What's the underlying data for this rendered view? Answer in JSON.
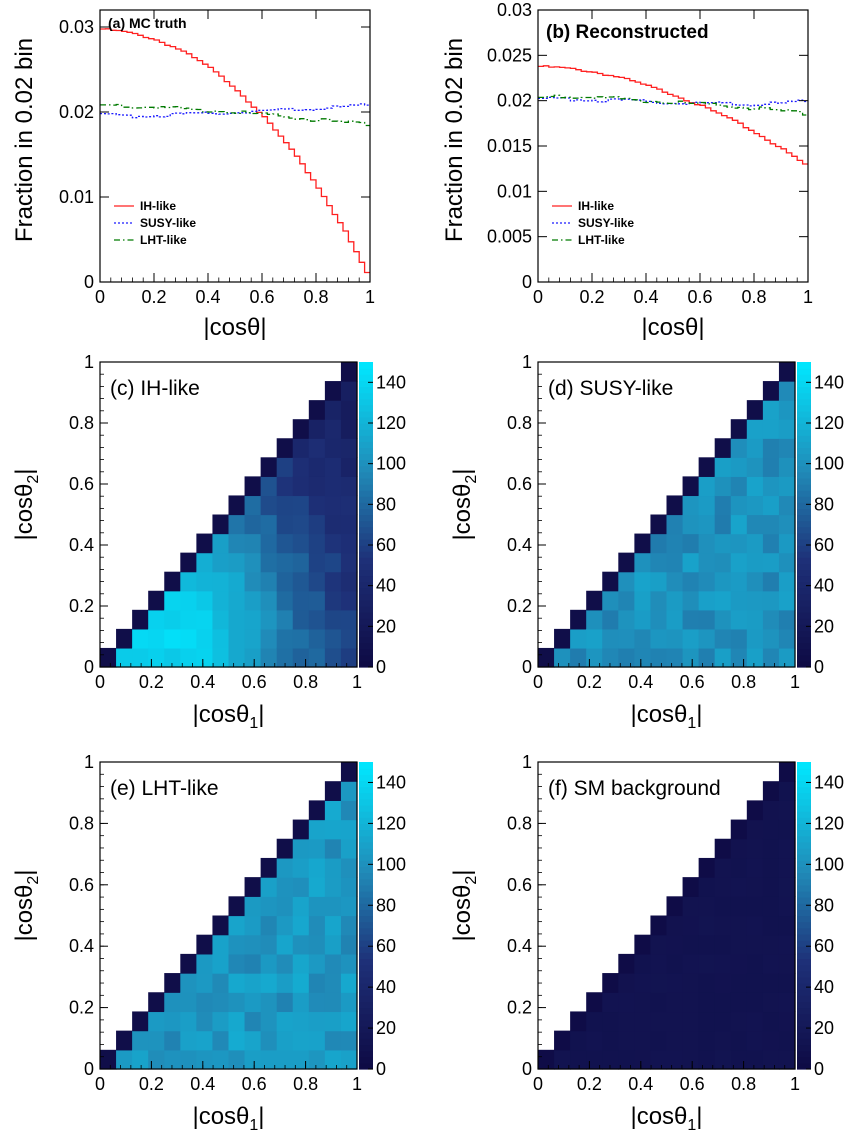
{
  "chart_data": [
    {
      "id": "a",
      "type": "line",
      "title": "(a) MC truth",
      "xlabel": "|cosθ|",
      "ylabel": "Fraction in 0.02 bin",
      "xlim": [
        0,
        1
      ],
      "ylim": [
        0,
        0.032
      ],
      "xticks": [
        "0",
        "0.2",
        "0.4",
        "0.6",
        "0.8",
        "1"
      ],
      "yticks": [
        "0",
        "0.01",
        "0.02",
        "0.03"
      ],
      "legend_position": "bottom-left",
      "series": [
        {
          "name": "IH-like",
          "style": "solid",
          "color": "#ff2020",
          "x": [
            0.0,
            0.1,
            0.2,
            0.3,
            0.4,
            0.5,
            0.6,
            0.7,
            0.8,
            0.9,
            1.0
          ],
          "y": [
            0.0298,
            0.0294,
            0.0286,
            0.0273,
            0.0254,
            0.0229,
            0.0197,
            0.016,
            0.0116,
            0.0065,
            0.0005
          ]
        },
        {
          "name": "SUSY-like",
          "style": "dotted",
          "color": "#1a1aff",
          "x": [
            0.0,
            0.1,
            0.2,
            0.3,
            0.4,
            0.5,
            0.6,
            0.7,
            0.8,
            0.9,
            1.0
          ],
          "y": [
            0.0197,
            0.0195,
            0.0196,
            0.0197,
            0.0198,
            0.02,
            0.0201,
            0.0203,
            0.0204,
            0.0206,
            0.0208
          ]
        },
        {
          "name": "LHT-like",
          "style": "dashdot",
          "color": "#007a00",
          "x": [
            0.0,
            0.1,
            0.2,
            0.3,
            0.4,
            0.5,
            0.6,
            0.7,
            0.8,
            0.9,
            1.0
          ],
          "y": [
            0.0208,
            0.0207,
            0.0206,
            0.0204,
            0.0202,
            0.02,
            0.0197,
            0.0194,
            0.0191,
            0.0188,
            0.0185
          ]
        }
      ]
    },
    {
      "id": "b",
      "type": "line",
      "title": "(b) Reconstructed",
      "xlabel": "|cosθ|",
      "ylabel": "Fraction in 0.02 bin",
      "xlim": [
        0,
        1
      ],
      "ylim": [
        0,
        0.03
      ],
      "xticks": [
        "0",
        "0.2",
        "0.4",
        "0.6",
        "0.8",
        "1"
      ],
      "yticks": [
        "0",
        "0.005",
        "0.01",
        "0.015",
        "0.02",
        "0.025",
        "0.03"
      ],
      "legend_position": "bottom-left",
      "series": [
        {
          "name": "IH-like",
          "style": "solid",
          "color": "#ff2020",
          "x": [
            0.0,
            0.1,
            0.2,
            0.3,
            0.4,
            0.5,
            0.6,
            0.7,
            0.8,
            0.9,
            1.0
          ],
          "y": [
            0.0238,
            0.0236,
            0.0232,
            0.0226,
            0.0217,
            0.0207,
            0.0195,
            0.0182,
            0.0166,
            0.0148,
            0.0128
          ]
        },
        {
          "name": "SUSY-like",
          "style": "dotted",
          "color": "#1a1aff",
          "x": [
            0.0,
            0.1,
            0.2,
            0.3,
            0.4,
            0.5,
            0.6,
            0.7,
            0.8,
            0.9,
            1.0
          ],
          "y": [
            0.0201,
            0.0202,
            0.0201,
            0.02,
            0.0199,
            0.0198,
            0.0197,
            0.0197,
            0.0196,
            0.0197,
            0.0199
          ]
        },
        {
          "name": "LHT-like",
          "style": "dashdot",
          "color": "#007a00",
          "x": [
            0.0,
            0.1,
            0.2,
            0.3,
            0.4,
            0.5,
            0.6,
            0.7,
            0.8,
            0.9,
            1.0
          ],
          "y": [
            0.0203,
            0.0205,
            0.0204,
            0.0202,
            0.02,
            0.0198,
            0.0196,
            0.0194,
            0.0192,
            0.0189,
            0.0185
          ]
        }
      ]
    },
    {
      "id": "c",
      "type": "heatmap",
      "title": "(c) IH-like",
      "xlabel": "|cosθ1|",
      "ylabel": "|cosθ2|",
      "xlim": [
        0,
        1
      ],
      "ylim": [
        0,
        1
      ],
      "zlim": [
        0,
        150
      ],
      "xticks": [
        "0",
        "0.2",
        "0.4",
        "0.6",
        "0.8",
        "1"
      ],
      "yticks": [
        "0",
        "0.2",
        "0.4",
        "0.6",
        "0.8",
        "1"
      ],
      "zticks": [
        "0",
        "20",
        "40",
        "60",
        "80",
        "100",
        "120",
        "140"
      ],
      "bins": 16,
      "region": "|cosθ2| ≤ |cosθ1|",
      "profile": {
        "peak": 140,
        "peak_at": [
          0.25,
          0.1
        ],
        "edge_value": 45,
        "diagonal_value": 5
      }
    },
    {
      "id": "d",
      "type": "heatmap",
      "title": "(d) SUSY-like",
      "xlabel": "|cosθ1|",
      "ylabel": "|cosθ2|",
      "xlim": [
        0,
        1
      ],
      "ylim": [
        0,
        1
      ],
      "zlim": [
        0,
        150
      ],
      "xticks": [
        "0",
        "0.2",
        "0.4",
        "0.6",
        "0.8",
        "1"
      ],
      "yticks": [
        "0",
        "0.2",
        "0.4",
        "0.6",
        "0.8",
        "1"
      ],
      "zticks": [
        "0",
        "20",
        "40",
        "60",
        "80",
        "100",
        "120",
        "140"
      ],
      "bins": 16,
      "region": "|cosθ2| ≤ |cosθ1|",
      "profile": {
        "level": 100,
        "diagonal_value": 5
      }
    },
    {
      "id": "e",
      "type": "heatmap",
      "title": "(e) LHT-like",
      "xlabel": "|cosθ1|",
      "ylabel": "|cosθ2|",
      "xlim": [
        0,
        1
      ],
      "ylim": [
        0,
        1
      ],
      "zlim": [
        0,
        150
      ],
      "xticks": [
        "0",
        "0.2",
        "0.4",
        "0.6",
        "0.8",
        "1"
      ],
      "yticks": [
        "0",
        "0.2",
        "0.4",
        "0.6",
        "0.8",
        "1"
      ],
      "zticks": [
        "0",
        "20",
        "40",
        "60",
        "80",
        "100",
        "120",
        "140"
      ],
      "bins": 16,
      "region": "|cosθ2| ≤ |cosθ1|",
      "profile": {
        "level": 104,
        "diagonal_value": 5
      }
    },
    {
      "id": "f",
      "type": "heatmap",
      "title": "(f) SM background",
      "xlabel": "|cosθ1|",
      "ylabel": "|cosθ2|",
      "xlim": [
        0,
        1
      ],
      "ylim": [
        0,
        1
      ],
      "zlim": [
        0,
        150
      ],
      "xticks": [
        "0",
        "0.2",
        "0.4",
        "0.6",
        "0.8",
        "1"
      ],
      "yticks": [
        "0",
        "0.2",
        "0.4",
        "0.6",
        "0.8",
        "1"
      ],
      "zticks": [
        "0",
        "20",
        "40",
        "60",
        "80",
        "100",
        "120",
        "140"
      ],
      "bins": 16,
      "region": "|cosθ2| ≤ |cosθ1|",
      "profile": {
        "level": 12,
        "diagonal_value": 3
      }
    }
  ]
}
